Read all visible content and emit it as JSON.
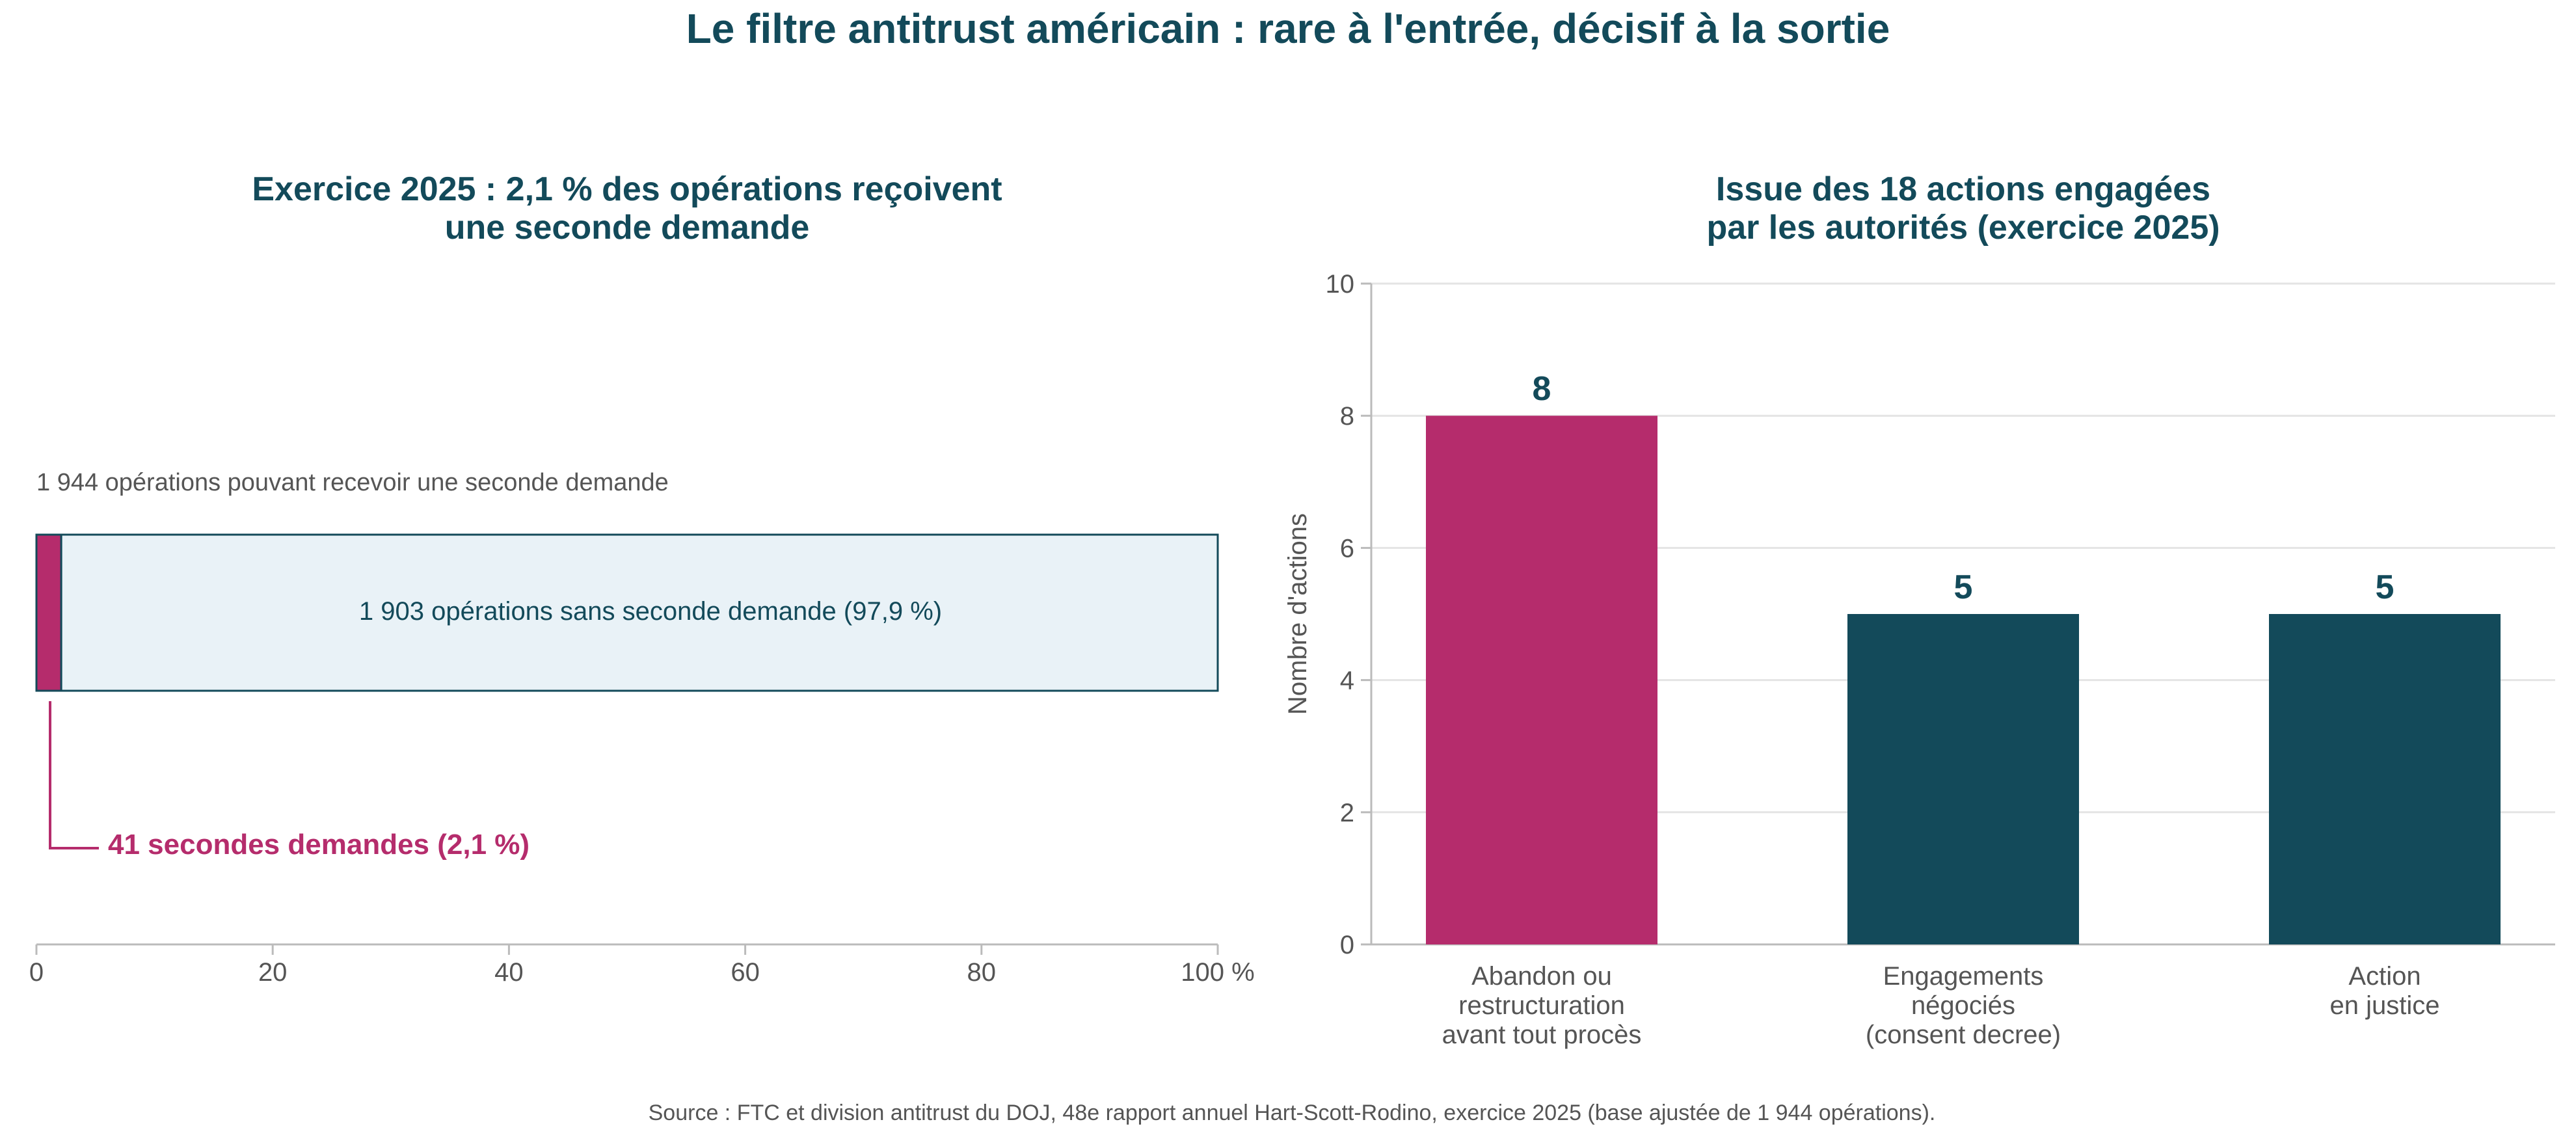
{
  "title": "Le filtre antitrust américain : rare à l'entrée, décisif à la sortie",
  "source": "Source : FTC et division antitrust du DOJ, 48e rapport annuel Hart-Scott-Rodino, exercice 2025 (base ajustée de 1 944 opérations).",
  "colors": {
    "accent": "#B52C6C",
    "dark": "#134A5A",
    "light_fill": "#E9F2F7",
    "text": "#555555",
    "grid": "#e4e4e4",
    "axis": "#bbbbbb"
  },
  "left_panel": {
    "title_lines": [
      "Exercice 2025 : 2,1 % des opérations reçoivent",
      "une seconde demande"
    ],
    "top_label": "1 944 opérations pouvant recevoir une seconde demande",
    "inner_label": "1 903 opérations sans seconde demande (97,9 %)",
    "callout_label": "41 secondes demandes (2,1 %)",
    "x_ticks": [
      "0",
      "20",
      "40",
      "60",
      "80",
      "100 %"
    ]
  },
  "right_panel": {
    "title_lines": [
      "Issue des 18 actions engagées",
      "par les autorités (exercice 2025)"
    ],
    "ylabel": "Nombre d'actions",
    "y_ticks": [
      "0",
      "2",
      "4",
      "6",
      "8",
      "10"
    ],
    "category_lines": [
      [
        "Abandon ou",
        "restructuration",
        "avant tout procès"
      ],
      [
        "Engagements",
        "négociés",
        "(consent decree)"
      ],
      [
        "Action",
        "en justice"
      ]
    ],
    "value_labels": [
      "8",
      "5",
      "5"
    ]
  },
  "chart_data": [
    {
      "type": "bar",
      "orientation": "horizontal-stacked",
      "xlim": [
        0,
        100
      ],
      "series": [
        {
          "name": "41 secondes demandes (2,1 %)",
          "values": [
            2.1
          ],
          "color": "#B52C6C"
        },
        {
          "name": "1 903 opérations sans seconde demande (97,9 %)",
          "values": [
            97.9
          ],
          "color": "#E9F2F7"
        }
      ],
      "counts": {
        "total": 1944,
        "second_requests": 41,
        "no_second_request": 1903
      }
    },
    {
      "type": "bar",
      "categories": [
        "Abandon ou restructuration avant tout procès",
        "Engagements négociés (consent decree)",
        "Action en justice"
      ],
      "values": [
        8,
        5,
        5
      ],
      "colors": [
        "#B52C6C",
        "#134A5A",
        "#134A5A"
      ],
      "ylim": [
        0,
        10
      ],
      "grid": true
    }
  ]
}
